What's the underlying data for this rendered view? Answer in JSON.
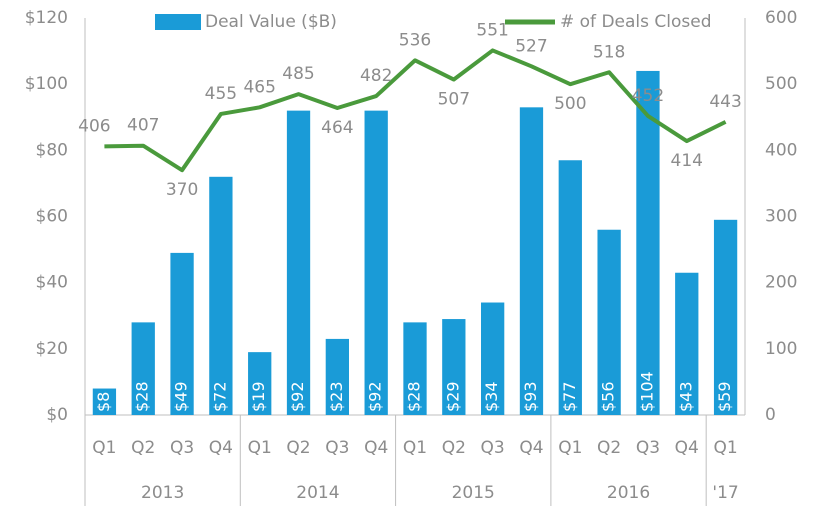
{
  "chart_data": {
    "type": "bar",
    "categories": [
      "Q1",
      "Q2",
      "Q3",
      "Q4",
      "Q1",
      "Q2",
      "Q3",
      "Q4",
      "Q1",
      "Q2",
      "Q3",
      "Q4",
      "Q1",
      "Q2",
      "Q3",
      "Q4",
      "Q1"
    ],
    "years": [
      "2013",
      "2013",
      "2013",
      "2013",
      "2014",
      "2014",
      "2014",
      "2014",
      "2015",
      "2015",
      "2015",
      "2015",
      "2016",
      "2016",
      "2016",
      "2016",
      "'17"
    ],
    "series": [
      {
        "name": "Deal Value ($B)",
        "type": "bar",
        "color": "#1a9bd7",
        "values": [
          8,
          28,
          49,
          72,
          19,
          92,
          23,
          92,
          28,
          29,
          34,
          93,
          77,
          56,
          104,
          43,
          59
        ],
        "value_labels": [
          "$8",
          "$28",
          "$49",
          "$72",
          "$19",
          "$92",
          "$23",
          "$92",
          "$28",
          "$29",
          "$34",
          "$93",
          "$77",
          "$56",
          "$104",
          "$43",
          "$59"
        ]
      },
      {
        "name": "# of Deals Closed",
        "type": "line",
        "color": "#4a9a3c",
        "axis": "y2",
        "values": [
          406,
          407,
          370,
          455,
          465,
          485,
          464,
          482,
          536,
          507,
          551,
          527,
          500,
          518,
          452,
          414,
          443
        ]
      }
    ],
    "ylim": [
      0,
      120
    ],
    "yticks": [
      {
        "value": 0,
        "label": "$0"
      },
      {
        "value": 20,
        "label": "$20"
      },
      {
        "value": 40,
        "label": "$40"
      },
      {
        "value": 60,
        "label": "$60"
      },
      {
        "value": 80,
        "label": "$80"
      },
      {
        "value": 100,
        "label": "$100"
      },
      {
        "value": 120,
        "label": "$120"
      }
    ],
    "y2lim": [
      0,
      600
    ],
    "y2ticks": [
      0,
      100,
      200,
      300,
      400,
      500,
      600
    ],
    "legend": "top"
  }
}
